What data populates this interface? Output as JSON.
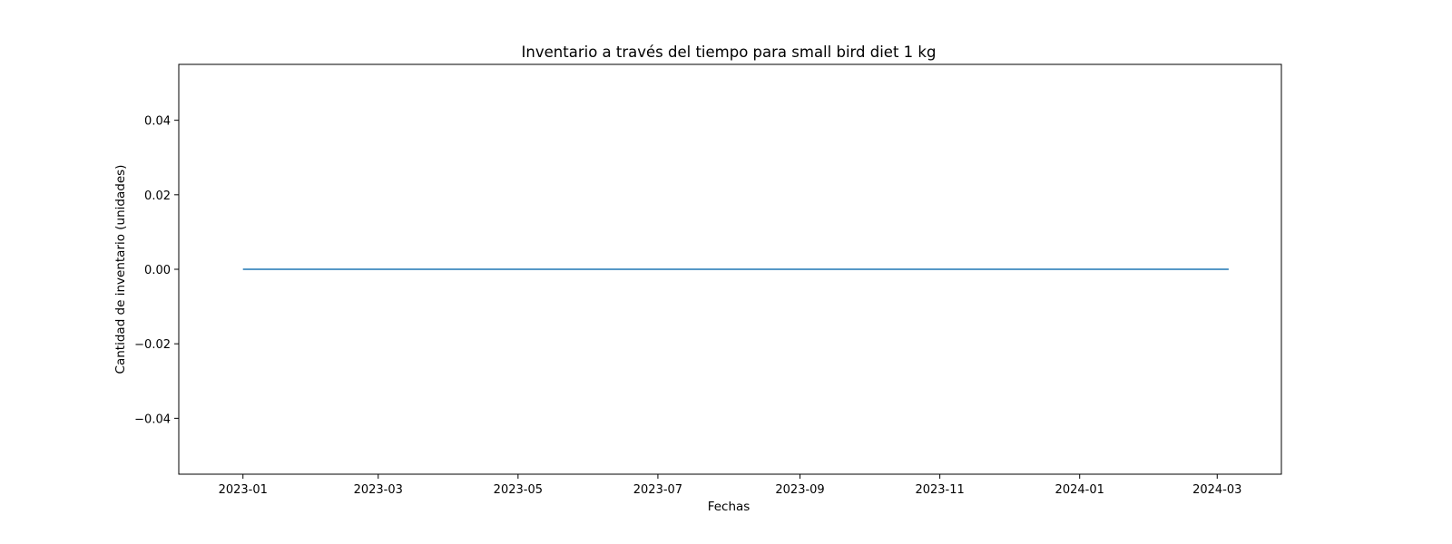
{
  "chart_data": {
    "type": "line",
    "title": "Inventario a través del tiempo para small bird diet 1 kg",
    "xlabel": "Fechas",
    "ylabel": "Cantidad de inventario (unidades)",
    "x_type": "date",
    "xlim": [
      "2022-12-04",
      "2024-03-29"
    ],
    "ylim": [
      -0.055,
      0.055
    ],
    "x_ticks": [
      "2023-01",
      "2023-03",
      "2023-05",
      "2023-07",
      "2023-09",
      "2023-11",
      "2024-01",
      "2024-03"
    ],
    "y_ticks": [
      -0.04,
      -0.02,
      0.0,
      0.02,
      0.04
    ],
    "y_tick_labels": [
      "−0.04",
      "−0.02",
      "0.00",
      "0.02",
      "0.04"
    ],
    "grid": false,
    "series": [
      {
        "color": "#1f77b4",
        "x": [
          "2023-01-01",
          "2024-03-06"
        ],
        "y": [
          0,
          0
        ]
      }
    ]
  }
}
